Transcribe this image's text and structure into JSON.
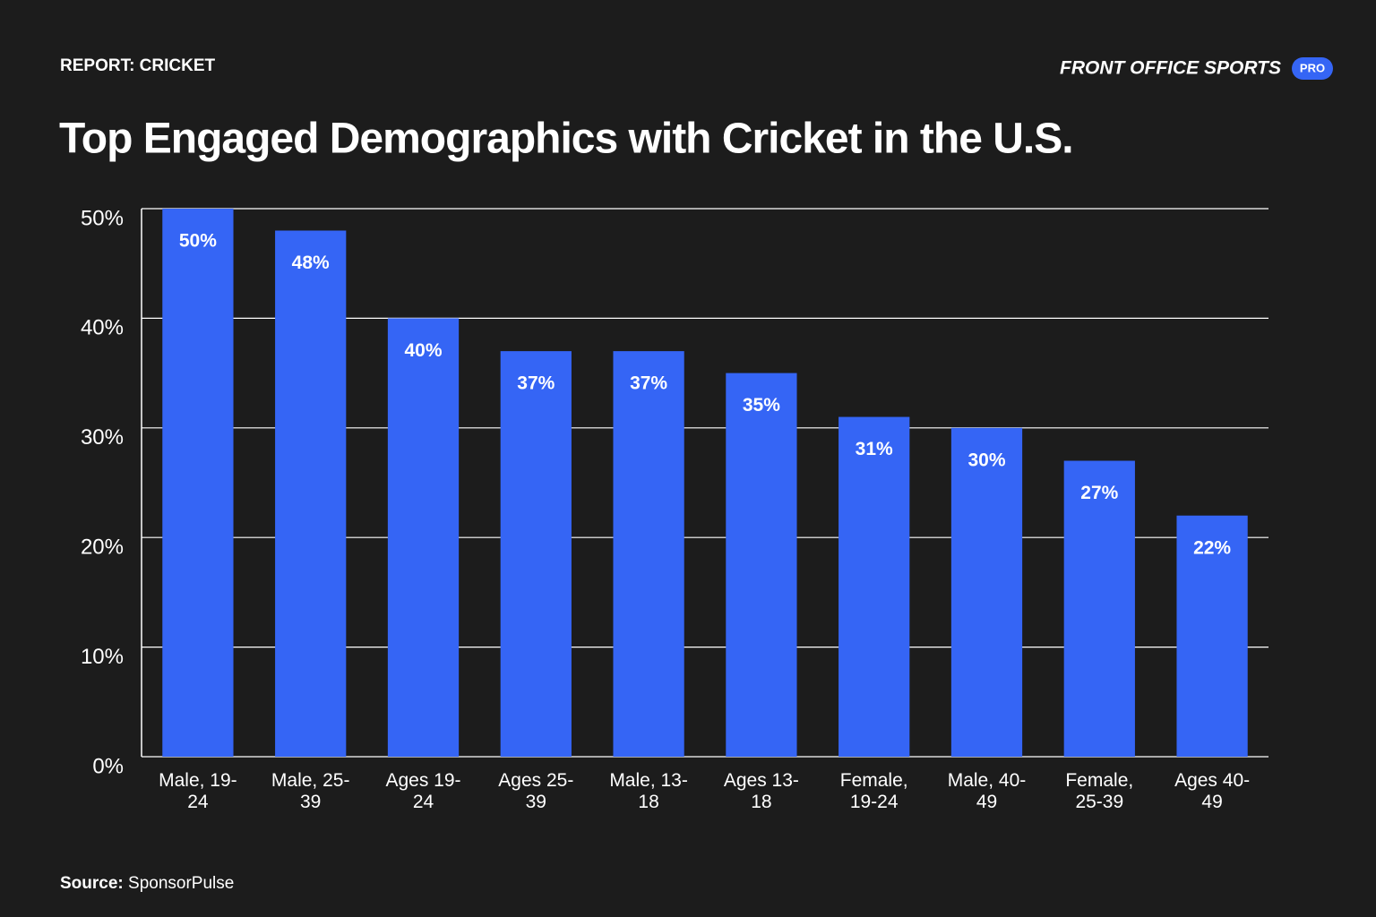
{
  "header": {
    "report": "REPORT: CRICKET",
    "brand": "FRONT OFFICE SPORTS",
    "badge": "PRO"
  },
  "chart_data": {
    "type": "bar",
    "title": "Top Engaged Demographics with Cricket in the U.S.",
    "categories": [
      "Male, 19-24",
      "Male, 25-39",
      "Ages 19-24",
      "Ages 25-39",
      "Male, 13-18",
      "Ages 13-18",
      "Female, 19-24",
      "Male, 40-49",
      "Female, 25-39",
      "Ages 40-49"
    ],
    "values": [
      50,
      48,
      40,
      37,
      37,
      35,
      31,
      30,
      27,
      22
    ],
    "value_labels": [
      "50%",
      "48%",
      "40%",
      "37%",
      "37%",
      "35%",
      "31%",
      "30%",
      "27%",
      "22%"
    ],
    "color": "#3565f5",
    "ylim": [
      0,
      50
    ],
    "yticks": [
      {
        "value": 0,
        "label": "0%"
      },
      {
        "value": 10,
        "label": "10%"
      },
      {
        "value": 20,
        "label": "20%"
      },
      {
        "value": 30,
        "label": "30%"
      },
      {
        "value": 40,
        "label": "40%"
      },
      {
        "value": 50,
        "label": "50%"
      }
    ],
    "grid": true
  },
  "footer": {
    "source_label": "Source:",
    "source": "SponsorPulse"
  }
}
